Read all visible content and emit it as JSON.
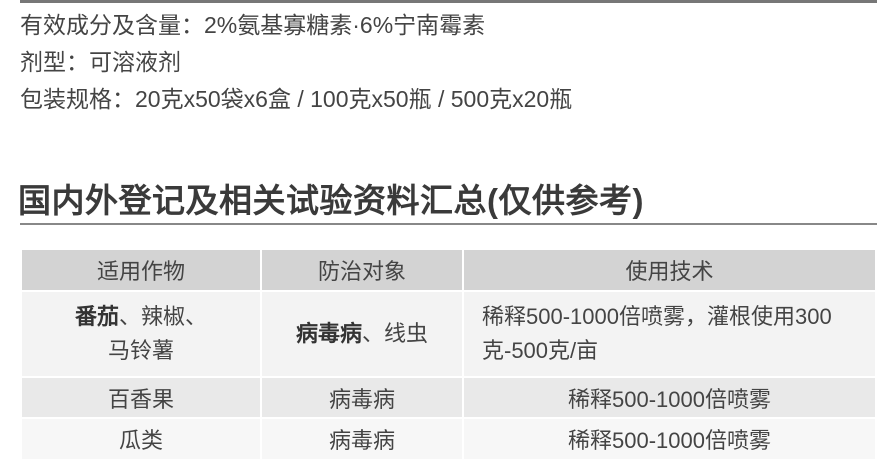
{
  "specs": [
    "有效成分及含量：2%氨基寡糖素·6%宁南霉素",
    "剂型：可溶液剂",
    "包装规格：20克x50袋x6盒 / 100克x50瓶 / 500克x20瓶"
  ],
  "heading": "国内外登记及相关试验资料汇总(仅供参考)",
  "table": {
    "headers": [
      "适用作物",
      "防治对象",
      "使用技术"
    ],
    "rows": [
      {
        "crop_bold": "番茄",
        "crop_rest1": "、辣椒、",
        "crop_rest2": "马铃薯",
        "target_bold": "病毒病",
        "target_rest": "、线虫",
        "usage": "稀释500-1000倍喷雾，灌根使用300克-500克/亩"
      },
      {
        "crop": "百香果",
        "target": "病毒病",
        "usage": "稀释500-1000倍喷雾"
      },
      {
        "crop": "瓜类",
        "target": "病毒病",
        "usage": "稀释500-1000倍喷雾"
      }
    ]
  }
}
